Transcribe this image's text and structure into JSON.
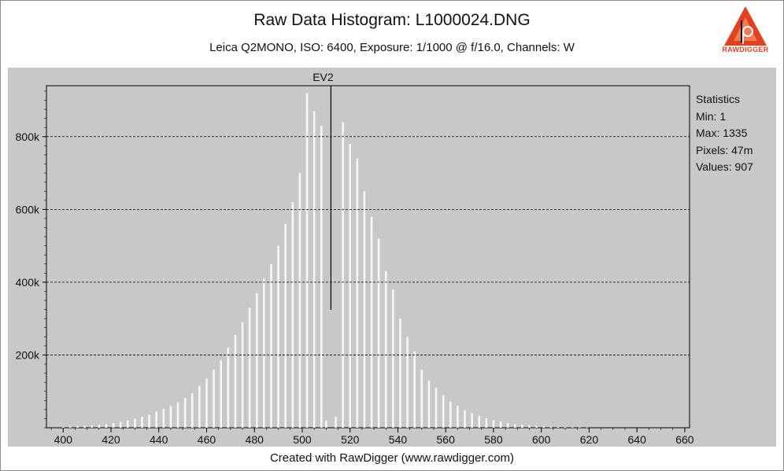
{
  "header": {
    "title": "Raw Data Histogram: L1000024.DNG",
    "subtitle": "Leica Q2MONO, ISO: 6400, Exposure: 1/1000 @ f/16.0, Channels: W",
    "logo_text": "RAWDIGGER"
  },
  "footer": {
    "credit": "Created with RawDigger (www.rawdigger.com)"
  },
  "statistics": {
    "heading": "Statistics",
    "min": "Min: 1",
    "max": "Max: 1335",
    "pixels": "Pixels: 47m",
    "values": "Values: 907"
  },
  "colors": {
    "plot_background": "#c8c8c8",
    "bars": "#f7f7f7",
    "marker": "#000000",
    "logo": "#e2411f"
  },
  "chart_data": {
    "type": "bar",
    "x_ticks": [
      "400",
      "420",
      "440",
      "460",
      "480",
      "500",
      "520",
      "540",
      "560",
      "580",
      "600",
      "620",
      "640",
      "660"
    ],
    "y_ticks": [
      "200k",
      "400k",
      "600k",
      "800k"
    ],
    "xlim": [
      393,
      662
    ],
    "ylim": [
      0,
      940000
    ],
    "grid": "horizontal dashed",
    "marker": {
      "label": "EV2",
      "x": 512
    },
    "values": [
      [
        400,
        2000
      ],
      [
        403,
        3000
      ],
      [
        406,
        4000
      ],
      [
        409,
        5000
      ],
      [
        412,
        6000
      ],
      [
        415,
        8000
      ],
      [
        418,
        10000
      ],
      [
        421,
        13000
      ],
      [
        424,
        16000
      ],
      [
        427,
        20000
      ],
      [
        430,
        25000
      ],
      [
        433,
        30000
      ],
      [
        436,
        36000
      ],
      [
        439,
        45000
      ],
      [
        442,
        52000
      ],
      [
        445,
        60000
      ],
      [
        448,
        70000
      ],
      [
        451,
        82000
      ],
      [
        454,
        95000
      ],
      [
        457,
        115000
      ],
      [
        460,
        135000
      ],
      [
        463,
        160000
      ],
      [
        466,
        185000
      ],
      [
        469,
        220000
      ],
      [
        472,
        255000
      ],
      [
        475,
        290000
      ],
      [
        478,
        330000
      ],
      [
        481,
        370000
      ],
      [
        484,
        410000
      ],
      [
        487,
        450000
      ],
      [
        490,
        500000
      ],
      [
        493,
        560000
      ],
      [
        496,
        620000
      ],
      [
        499,
        700000
      ],
      [
        502,
        920000
      ],
      [
        505,
        870000
      ],
      [
        508,
        830000
      ],
      [
        510,
        20000
      ],
      [
        514,
        30000
      ],
      [
        517,
        840000
      ],
      [
        520,
        780000
      ],
      [
        523,
        740000
      ],
      [
        526,
        650000
      ],
      [
        529,
        580000
      ],
      [
        532,
        520000
      ],
      [
        535,
        430000
      ],
      [
        538,
        380000
      ],
      [
        541,
        300000
      ],
      [
        544,
        250000
      ],
      [
        547,
        210000
      ],
      [
        550,
        160000
      ],
      [
        553,
        130000
      ],
      [
        556,
        110000
      ],
      [
        559,
        90000
      ],
      [
        562,
        72000
      ],
      [
        565,
        60000
      ],
      [
        568,
        48000
      ],
      [
        571,
        40000
      ],
      [
        574,
        32000
      ],
      [
        577,
        26000
      ],
      [
        580,
        21000
      ],
      [
        583,
        17000
      ],
      [
        586,
        13000
      ],
      [
        589,
        10000
      ],
      [
        592,
        8000
      ],
      [
        595,
        6000
      ],
      [
        598,
        5000
      ],
      [
        601,
        4000
      ],
      [
        604,
        3000
      ],
      [
        607,
        2500
      ],
      [
        610,
        2000
      ],
      [
        613,
        1500
      ],
      [
        616,
        1000
      ],
      [
        619,
        800
      ]
    ]
  }
}
